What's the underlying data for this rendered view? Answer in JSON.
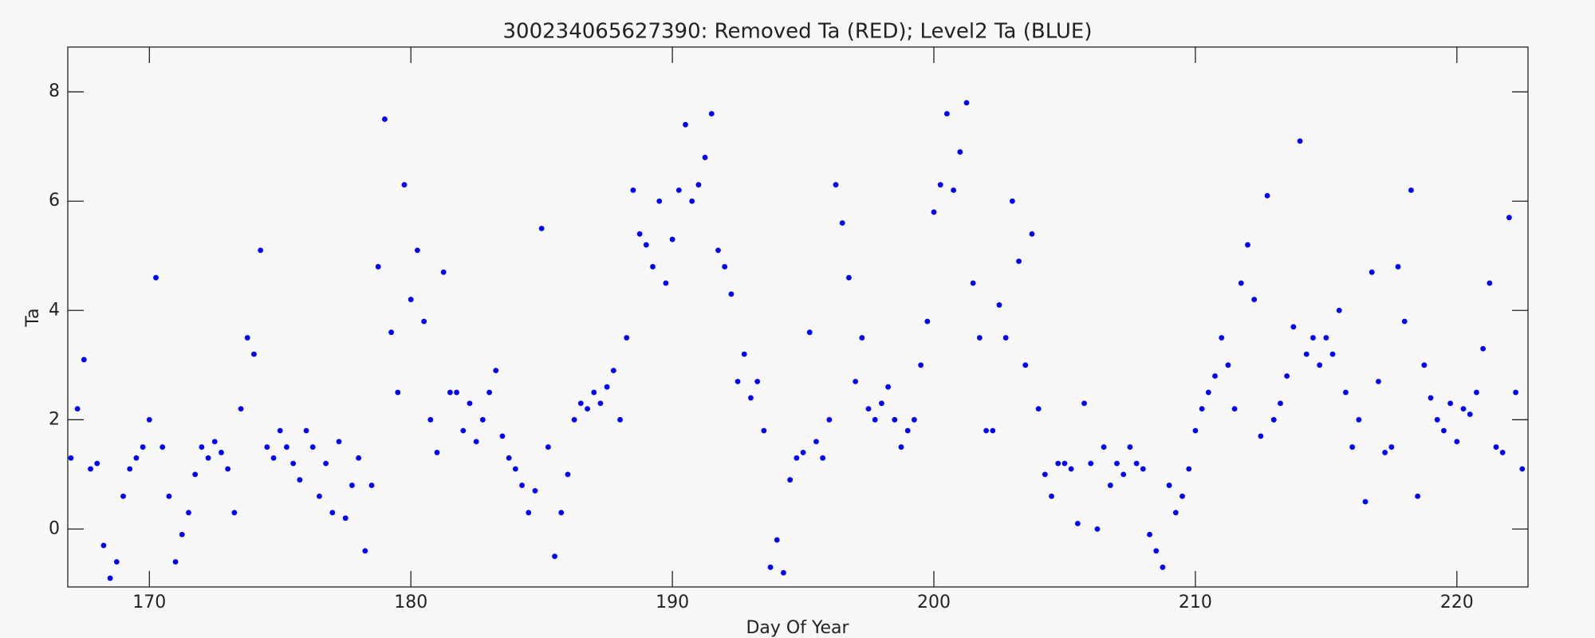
{
  "chart_data": {
    "type": "scatter",
    "title": "300234065627390: Removed Ta (RED); Level2 Ta (BLUE)",
    "xlabel": "Day Of Year",
    "ylabel": "Ta",
    "color": "#0000ff",
    "xlim": [
      166.88,
      222.72
    ],
    "ylim": [
      -1.06,
      8.82
    ],
    "xticks": [
      170,
      180,
      190,
      200,
      210,
      220
    ],
    "yticks": [
      0,
      2,
      4,
      6,
      8
    ],
    "x": [
      167,
      167.25,
      167.5,
      167.75,
      168,
      168.25,
      168.5,
      168.75,
      169,
      169.25,
      169.5,
      169.75,
      170,
      170.25,
      170.5,
      170.75,
      171,
      171.25,
      171.5,
      171.75,
      172,
      172.25,
      172.5,
      172.75,
      173,
      173.25,
      173.5,
      173.75,
      174,
      174.25,
      174.5,
      174.75,
      175,
      175.25,
      175.5,
      175.75,
      176,
      176.25,
      176.5,
      176.75,
      177,
      177.25,
      177.5,
      177.75,
      178,
      178.25,
      178.5,
      178.75,
      179,
      179.25,
      179.5,
      179.75,
      180,
      180.25,
      180.5,
      180.75,
      181,
      181.25,
      181.5,
      181.75,
      182,
      182.25,
      182.5,
      182.75,
      183,
      183.25,
      183.5,
      183.75,
      184,
      184.25,
      184.5,
      184.75,
      185,
      185.25,
      185.5,
      185.75,
      186,
      186.25,
      186.5,
      186.75,
      187,
      187.25,
      187.5,
      187.75,
      188,
      188.25,
      188.5,
      188.75,
      189,
      189.25,
      189.5,
      189.75,
      190,
      190.25,
      190.5,
      190.75,
      191,
      191.25,
      191.5,
      191.75,
      192,
      192.25,
      192.5,
      192.75,
      193,
      193.25,
      193.5,
      193.75,
      194,
      194.25,
      194.5,
      194.75,
      195,
      195.25,
      195.5,
      195.75,
      196,
      196.25,
      196.5,
      196.75,
      197,
      197.25,
      197.5,
      197.75,
      198,
      198.25,
      198.5,
      198.75,
      199,
      199.25,
      199.5,
      199.75,
      200,
      200.25,
      200.5,
      200.75,
      201,
      201.25,
      201.5,
      201.75,
      202,
      202.25,
      202.5,
      202.75,
      203,
      203.25,
      203.5,
      203.75,
      204,
      204.25,
      204.5,
      204.75,
      205,
      205.25,
      205.5,
      205.75,
      206,
      206.25,
      206.5,
      206.75,
      207,
      207.25,
      207.5,
      207.75,
      208,
      208.25,
      208.5,
      208.75,
      209,
      209.25,
      209.5,
      209.75,
      210,
      210.25,
      210.5,
      210.75,
      211,
      211.25,
      211.5,
      211.75,
      212,
      212.25,
      212.5,
      212.75,
      213,
      213.25,
      213.5,
      213.75,
      214,
      214.25,
      214.5,
      214.75,
      215,
      215.25,
      215.5,
      215.75,
      216,
      216.25,
      216.5,
      216.75,
      217,
      217.25,
      217.5,
      217.75,
      218,
      218.25,
      218.5,
      218.75,
      219,
      219.25,
      219.5,
      219.75,
      220,
      220.25,
      220.5,
      220.75,
      221,
      221.25,
      221.5,
      221.75,
      222,
      222.25,
      222.5
    ],
    "values": [
      1.3,
      2.2,
      3.1,
      1.1,
      1.2,
      -0.3,
      -0.9,
      -0.6,
      0.6,
      1.1,
      1.3,
      1.5,
      2.0,
      4.6,
      1.5,
      0.6,
      -0.6,
      -0.1,
      0.3,
      1.0,
      1.5,
      1.3,
      1.6,
      1.4,
      1.1,
      0.3,
      2.2,
      3.5,
      3.2,
      5.1,
      1.5,
      1.3,
      1.8,
      1.5,
      1.2,
      0.9,
      1.8,
      1.5,
      0.6,
      1.2,
      0.3,
      1.6,
      0.2,
      0.8,
      1.3,
      -0.4,
      0.8,
      4.8,
      7.5,
      3.6,
      2.5,
      6.3,
      4.2,
      5.1,
      3.8,
      2.0,
      1.4,
      4.7,
      2.5,
      2.5,
      1.8,
      2.3,
      1.6,
      2.0,
      2.5,
      2.9,
      1.7,
      1.3,
      1.1,
      0.8,
      0.3,
      0.7,
      5.5,
      1.5,
      -0.5,
      0.3,
      1.0,
      2.0,
      2.3,
      2.2,
      2.5,
      2.3,
      2.6,
      2.9,
      2.0,
      3.5,
      6.2,
      5.4,
      5.2,
      4.8,
      6.0,
      4.5,
      5.3,
      6.2,
      7.4,
      6.0,
      6.3,
      6.8,
      7.6,
      5.1,
      4.8,
      4.3,
      2.7,
      3.2,
      2.4,
      2.7,
      1.8,
      -0.7,
      -0.2,
      -0.8,
      0.9,
      1.3,
      1.4,
      3.6,
      1.6,
      1.3,
      2.0,
      6.3,
      5.6,
      4.6,
      2.7,
      3.5,
      2.2,
      2.0,
      2.3,
      2.6,
      2.0,
      1.5,
      1.8,
      2.0,
      3.0,
      3.8,
      5.8,
      6.3,
      7.6,
      6.2,
      6.9,
      7.8,
      4.5,
      3.5,
      1.8,
      1.8,
      4.1,
      3.5,
      6.0,
      4.9,
      3.0,
      5.4,
      2.2,
      1.0,
      0.6,
      1.2,
      1.2,
      1.1,
      0.1,
      2.3,
      1.2,
      0.0,
      1.5,
      0.8,
      1.2,
      1.0,
      1.5,
      1.2,
      1.1,
      -0.1,
      -0.4,
      -0.7,
      0.8,
      0.3,
      0.6,
      1.1,
      1.8,
      2.2,
      2.5,
      2.8,
      3.5,
      3.0,
      2.2,
      4.5,
      5.2,
      4.2,
      1.7,
      6.1,
      2.0,
      2.3,
      2.8,
      3.7,
      7.1,
      3.2,
      3.5,
      3.0,
      3.5,
      3.2,
      4.0,
      2.5,
      1.5,
      2.0,
      0.5,
      4.7,
      2.7,
      1.4,
      1.5,
      4.8,
      3.8,
      6.2,
      0.6,
      3.0,
      2.4,
      2.0,
      1.8,
      2.3,
      1.6,
      2.2,
      2.1,
      2.5,
      3.3,
      4.5,
      1.5,
      1.4,
      5.7,
      2.5,
      1.1
    ]
  }
}
